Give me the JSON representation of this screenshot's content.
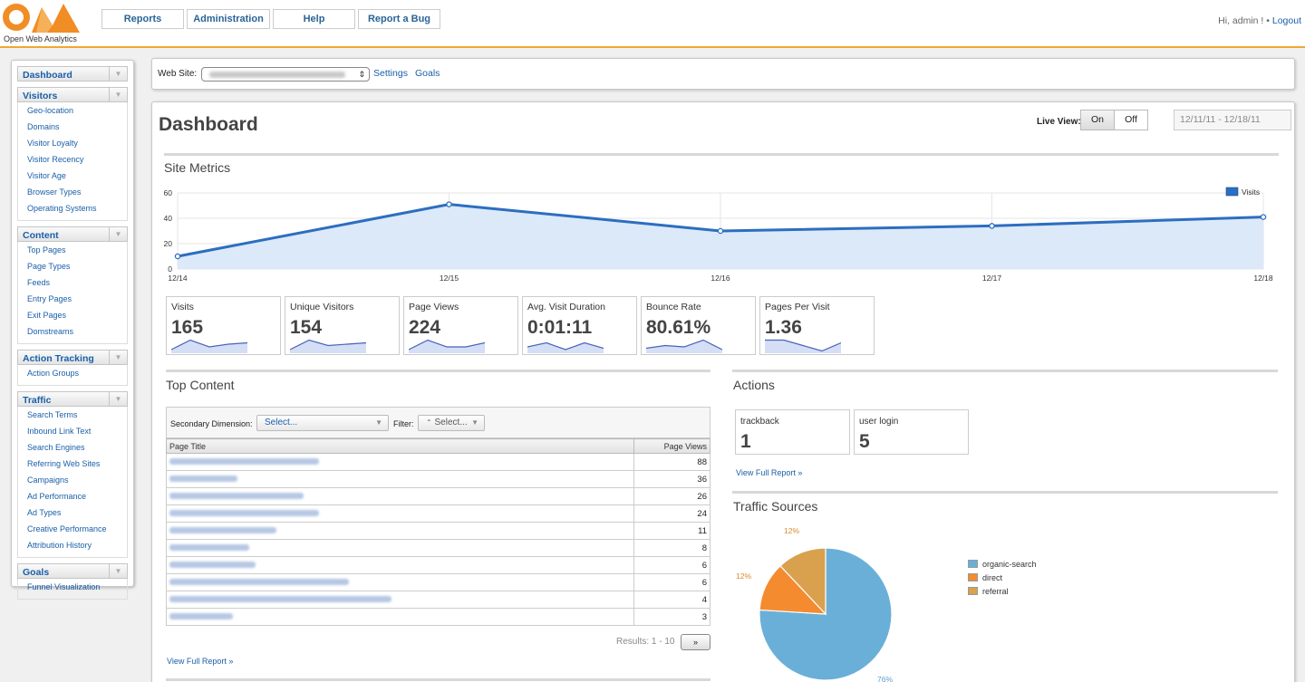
{
  "header": {
    "logo_text": "Open Web Analytics",
    "nav": [
      "Reports",
      "Administration",
      "Help",
      "Report a Bug"
    ],
    "greeting": "Hi, admin ! •",
    "logout": "Logout"
  },
  "sidebar": {
    "groups": [
      {
        "title": "Dashboard",
        "items": []
      },
      {
        "title": "Visitors",
        "items": [
          "Geo-location",
          "Domains",
          "Visitor Loyalty",
          "Visitor Recency",
          "Visitor Age",
          "Browser Types",
          "Operating Systems"
        ]
      },
      {
        "title": "Content",
        "items": [
          "Top Pages",
          "Page Types",
          "Feeds",
          "Entry Pages",
          "Exit Pages",
          "Domstreams"
        ]
      },
      {
        "title": "Action Tracking",
        "items": [
          "Action Groups"
        ]
      },
      {
        "title": "Traffic",
        "items": [
          "Search Terms",
          "Inbound Link Text",
          "Search Engines",
          "Referring Web Sites",
          "Campaigns",
          "Ad Performance",
          "Ad Types",
          "Creative Performance",
          "Attribution History"
        ]
      },
      {
        "title": "Goals",
        "items": [
          "Funnel Visualization"
        ]
      }
    ]
  },
  "sitebar": {
    "label": "Web Site:",
    "settings": "Settings",
    "goals": "Goals"
  },
  "dashboard": {
    "title": "Dashboard",
    "live_view_label": "Live View:",
    "on": "On",
    "off": "Off",
    "date_range": "12/11/11 - 12/18/11"
  },
  "site_metrics": {
    "title": "Site Metrics"
  },
  "chart_data": {
    "type": "area",
    "title": "Site Metrics",
    "series": [
      {
        "name": "Visits",
        "values": [
          10,
          51,
          30,
          34,
          41
        ]
      }
    ],
    "categories": [
      "12/14",
      "12/15",
      "12/16",
      "12/17",
      "12/18"
    ],
    "yticks": [
      0,
      20,
      40,
      60
    ],
    "ylim": [
      0,
      60
    ],
    "legend": "top-right",
    "color": "#2c6ec0"
  },
  "metrics": [
    {
      "label": "Visits",
      "value": "165",
      "spark": [
        2,
        9,
        4,
        6,
        7
      ]
    },
    {
      "label": "Unique Visitors",
      "value": "154",
      "spark": [
        2,
        9,
        5,
        6,
        7
      ]
    },
    {
      "label": "Page Views",
      "value": "224",
      "spark": [
        2,
        9,
        4,
        4,
        7
      ]
    },
    {
      "label": "Avg. Visit Duration",
      "value": "0:01:11",
      "spark": [
        4,
        7,
        2,
        7,
        3
      ]
    },
    {
      "label": "Bounce Rate",
      "value": "80.61%",
      "spark": [
        3,
        5,
        4,
        9,
        2
      ]
    },
    {
      "label": "Pages Per Visit",
      "value": "1.36",
      "spark": [
        9,
        9,
        5,
        1,
        7
      ]
    }
  ],
  "top_content": {
    "title": "Top Content",
    "secondary_label": "Secondary Dimension:",
    "secondary_value": "Select...",
    "filter_label": "Filter:",
    "filter_value": "Select...",
    "col_title": "Page Title",
    "col_views": "Page Views",
    "rows": [
      88,
      36,
      26,
      24,
      11,
      8,
      6,
      6,
      4,
      3
    ],
    "results": "Results: 1 - 10",
    "next": "»",
    "view_full": "View Full Report »"
  },
  "actions": {
    "title": "Actions",
    "items": [
      {
        "label": "trackback",
        "value": "1"
      },
      {
        "label": "user login",
        "value": "5"
      }
    ],
    "view_full": "View Full Report »"
  },
  "traffic_sources": {
    "title": "Traffic Sources",
    "chart_data": {
      "type": "pie",
      "labels": [
        "organic-search",
        "direct",
        "referral"
      ],
      "values": [
        76,
        12,
        12
      ],
      "value_labels": [
        "76%",
        "12%",
        "12%"
      ],
      "colors": [
        "#6aafd8",
        "#f58b2f",
        "#d9a14e"
      ]
    }
  }
}
